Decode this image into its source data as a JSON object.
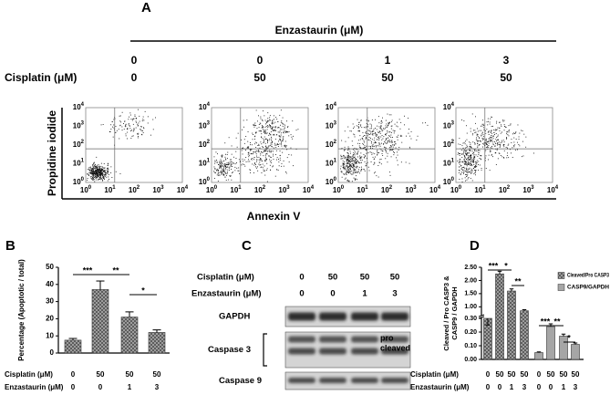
{
  "panel_a": {
    "label": "A",
    "treatment_title": "Enzastaurin (μM)",
    "enzastaurin": [
      "0",
      "0",
      "1",
      "3"
    ],
    "cisplatin_label": "Cisplatin (μM)",
    "cisplatin": [
      "0",
      "50",
      "50",
      "50"
    ],
    "y_label": "Propidine iodide",
    "x_label": "Annexin V",
    "tick_base": "10",
    "tick_exponents": [
      "0",
      "1",
      "2",
      "3",
      "4"
    ]
  },
  "panel_c": {
    "label": "C",
    "cisplatin_label": "Cisplatin (μM)",
    "cisplatin": [
      "0",
      "50",
      "50",
      "50"
    ],
    "enzastaurin_label": "Enzastaurin (μM)",
    "enzastaurin": [
      "0",
      "0",
      "1",
      "3"
    ],
    "rows": [
      "GAPDH",
      "Caspase 3",
      "Caspase 9"
    ],
    "band_labels": [
      "pro",
      "cleaved"
    ]
  },
  "chart_data": [
    {
      "type": "bar",
      "label": "B",
      "y_label": "Percentage (Apoptotic / total)",
      "ylim": [
        0,
        50
      ],
      "yticks": [
        0,
        10,
        20,
        30,
        40,
        50
      ],
      "x_label_rows": [
        {
          "name": "Cisplatin (μM)",
          "labels": [
            "0",
            "50",
            "50",
            "50"
          ]
        },
        {
          "name": "Enzastaurin (μM)",
          "labels": [
            "0",
            "0",
            "1",
            "3"
          ]
        }
      ],
      "series": [
        {
          "color": "#a6a6a6",
          "hatch": true,
          "values": [
            7.5,
            37,
            21,
            12
          ],
          "errors": [
            1,
            5,
            3,
            1.5
          ]
        }
      ],
      "annotations": [
        "***",
        "**",
        "*"
      ]
    },
    {
      "type": "bar",
      "label": "D",
      "y_label": [
        "Cleaved / Pro CASP3 &",
        "CASP9 / GAPDH"
      ],
      "ylim": [
        0,
        2.5
      ],
      "axis_break": [
        0.3,
        0.7
      ],
      "yticks": [
        {
          "value": 0,
          "label": "0.00"
        },
        {
          "value": 0.1,
          "label": "0.10"
        },
        {
          "value": 0.2,
          "label": "0.20"
        },
        {
          "value": 0.3,
          "label": "0.30"
        },
        {
          "value": 1,
          "label": "1.00"
        },
        {
          "value": 1.5,
          "label": "1.50"
        },
        {
          "value": 2,
          "label": "2.00"
        },
        {
          "value": 2.5,
          "label": "2.50"
        }
      ],
      "x_label_rows": [
        {
          "name": "Cisplatin (μM)",
          "labels": [
            "0",
            "50",
            "50",
            "50"
          ]
        },
        {
          "name": "Enzastaurin (μM)",
          "labels": [
            "0",
            "0",
            "1",
            "3"
          ]
        }
      ],
      "series": [
        {
          "name": "Cleaved/Pro CASP3",
          "color": "#a6a6a6",
          "hatch": true,
          "values": [
            0.3,
            2.25,
            1.6,
            0.85
          ],
          "errors": [
            0.01,
            0.1,
            0.08,
            0.04
          ]
        },
        {
          "name": "CASP9/GAPDH",
          "color": "#a6a6a6",
          "hatch": false,
          "values": [
            0.05,
            0.24,
            0.17,
            0.11
          ],
          "errors": [
            0.005,
            0.02,
            0.015,
            0.01
          ]
        }
      ],
      "annotations": [
        "***",
        "*",
        "**",
        "***",
        "**",
        "*"
      ]
    }
  ]
}
